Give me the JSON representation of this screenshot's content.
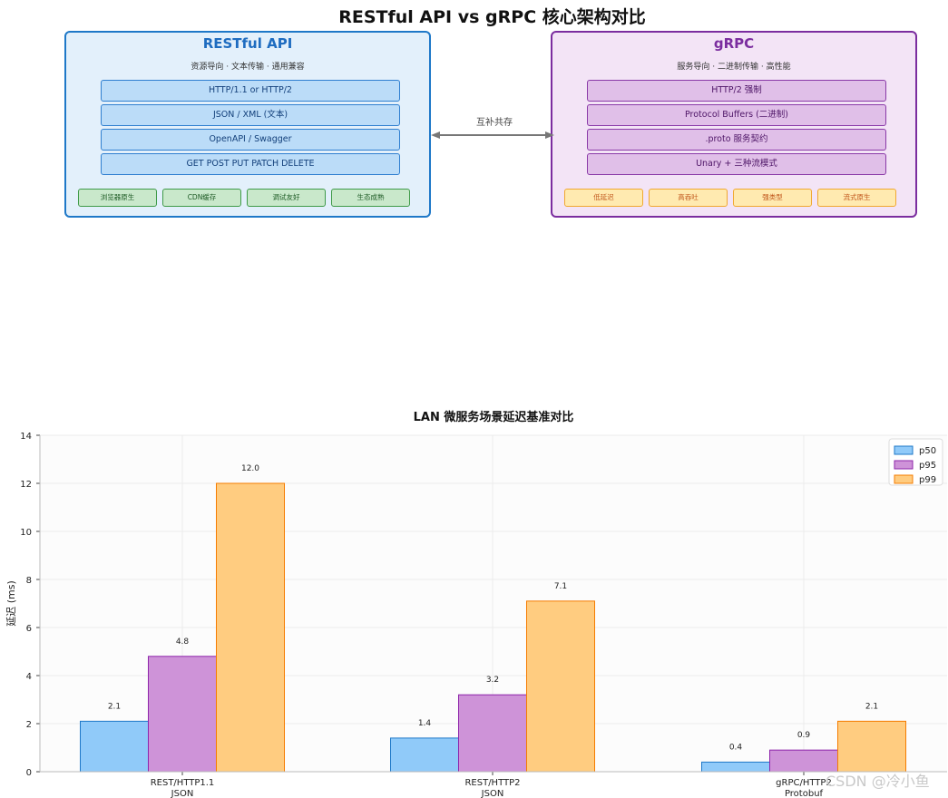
{
  "diagram": {
    "title": "RESTful API vs gRPC 核心架构对比",
    "rest": {
      "title": "RESTful API",
      "subtitle": "资源导向 · 文本传输 · 通用兼容",
      "features": [
        "HTTP/1.1 or HTTP/2",
        "JSON / XML (文本)",
        "OpenAPI / Swagger",
        "GET POST PUT PATCH DELETE"
      ],
      "chips": [
        "浏览器原生",
        "CDN缓存",
        "调试友好",
        "生态成熟"
      ],
      "colors": {
        "border": "#1e78c8",
        "fill": "#e3f0fb"
      }
    },
    "grpc": {
      "title": "gRPC",
      "subtitle": "服务导向 · 二进制传输 · 高性能",
      "features": [
        "HTTP/2 强制",
        "Protocol Buffers (二进制)",
        ".proto 服务契约",
        "Unary + 三种流模式"
      ],
      "chips": [
        "低延迟",
        "高吞吐",
        "强类型",
        "流式原生"
      ],
      "colors": {
        "border": "#7b2d9f",
        "fill": "#f3e4f6"
      }
    },
    "connector_label": "互补共存"
  },
  "chart_data": {
    "type": "bar",
    "title": "LAN 微服务场景延迟基准对比",
    "xlabel": "",
    "ylabel": "延迟 (ms)",
    "categories": [
      "REST/HTTP1.1\nJSON",
      "REST/HTTP2\nJSON",
      "gRPC/HTTP2\nProtobuf"
    ],
    "series": [
      {
        "name": "p50",
        "values": [
          2.1,
          1.4,
          0.4
        ],
        "color": "#90caf9",
        "edge": "#1e78c8"
      },
      {
        "name": "p95",
        "values": [
          4.8,
          3.2,
          0.9
        ],
        "color": "#ce93d8",
        "edge": "#8e24aa"
      },
      {
        "name": "p99",
        "values": [
          12.0,
          7.1,
          2.1
        ],
        "color": "#ffcc80",
        "edge": "#f57c00"
      }
    ],
    "ylim": [
      0,
      14
    ],
    "yticks": [
      0,
      2,
      4,
      6,
      8,
      10,
      12,
      14
    ],
    "grid": true,
    "legend": "top-right"
  },
  "watermark": "CSDN @冷小鱼"
}
